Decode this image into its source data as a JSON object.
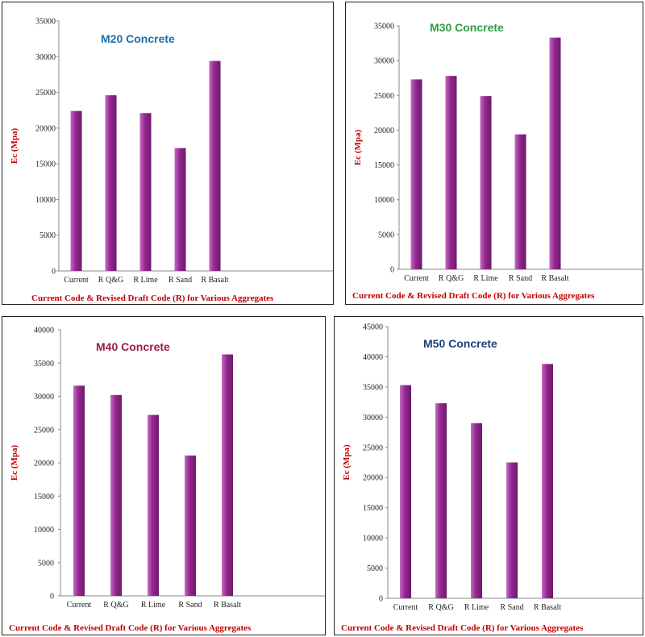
{
  "chart_data": [
    {
      "type": "bar",
      "title": "M20 Concrete",
      "title_color": "#1a6fb0",
      "xlabel": "Current Code & Revised Draft Code (R) for Various Aggregates",
      "ylabel": "Ec (Mpa)",
      "categories": [
        "Current",
        "R Q&G",
        "R Lime",
        "R Sand",
        "R Basalt"
      ],
      "values": [
        22400,
        24600,
        22100,
        17200,
        29400
      ],
      "ylim": [
        0,
        35000
      ],
      "yticks": [
        0,
        5000,
        10000,
        15000,
        20000,
        25000,
        30000,
        35000
      ],
      "bar_color": "#93278f",
      "grid": false
    },
    {
      "type": "bar",
      "title": "M30 Concrete",
      "title_color": "#2e9e3e",
      "xlabel": "Current Code & Revised Draft Code (R) for Various Aggregates",
      "ylabel": "Ec (Mpa)",
      "categories": [
        "Current",
        "R Q&G",
        "R Lime",
        "R Sand",
        "R Basalt"
      ],
      "values": [
        27300,
        27800,
        24900,
        19400,
        33300
      ],
      "ylim": [
        0,
        35000
      ],
      "yticks": [
        0,
        5000,
        10000,
        15000,
        20000,
        25000,
        30000,
        35000
      ],
      "bar_color": "#93278f",
      "grid": false
    },
    {
      "type": "bar",
      "title": "M40 Concrete",
      "title_color": "#9b1b4b",
      "xlabel": "Current Code & Revised Draft Code (R) for Various Aggregates",
      "ylabel": "Ec (Mpa)",
      "categories": [
        "Current",
        "R Q&G",
        "R Lime",
        "R Sand",
        "R Basalt"
      ],
      "values": [
        31600,
        30200,
        27200,
        21100,
        36300
      ],
      "ylim": [
        0,
        40000
      ],
      "yticks": [
        0,
        5000,
        10000,
        15000,
        20000,
        25000,
        30000,
        35000,
        40000
      ],
      "bar_color": "#93278f",
      "grid": false
    },
    {
      "type": "bar",
      "title": "M50 Concrete",
      "title_color": "#1f3f7a",
      "xlabel": "Current Code & Revised Draft Code (R) for Various Aggregates",
      "ylabel": "Ec (Mpa)",
      "categories": [
        "Current",
        "R Q&G",
        "R Lime",
        "R Sand",
        "R Basalt"
      ],
      "values": [
        35300,
        32300,
        29000,
        22500,
        38800
      ],
      "ylim": [
        0,
        45000
      ],
      "yticks": [
        0,
        5000,
        10000,
        15000,
        20000,
        25000,
        30000,
        35000,
        40000,
        45000
      ],
      "bar_color": "#93278f",
      "grid": false
    }
  ]
}
